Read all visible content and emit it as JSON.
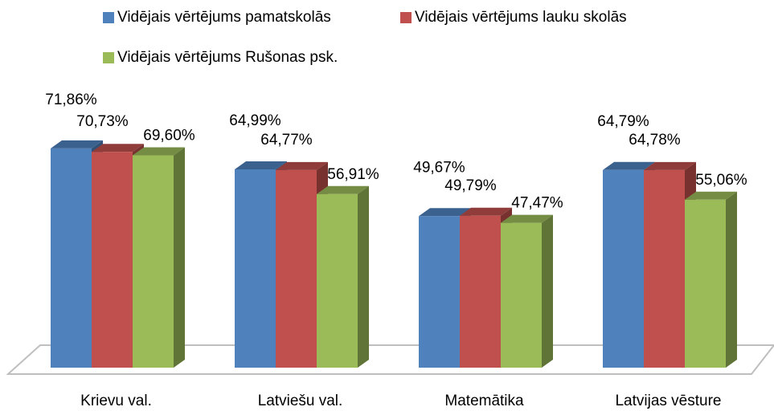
{
  "chart_data": {
    "type": "bar3d",
    "categories": [
      "Krievu val.",
      "Latviešu val.",
      "Matemātika",
      "Latvijas vēsture"
    ],
    "series": [
      {
        "name": "Vidējais vērtējums pamatskolās",
        "color": "#4f81bd",
        "values": [
          71.86,
          64.99,
          49.67,
          64.79
        ],
        "value_labels": [
          "71,86%",
          "64,99%",
          "49,67%",
          "64,79%"
        ]
      },
      {
        "name": "Vidējais vērtējums lauku skolās",
        "color": "#c0504d",
        "values": [
          70.73,
          64.77,
          49.79,
          64.78
        ],
        "value_labels": [
          "70,73%",
          "64,77%",
          "49,79%",
          "64,78%"
        ]
      },
      {
        "name": "Vidējais vērtējums Rušonas psk.",
        "color": "#9bbb59",
        "values": [
          69.6,
          56.91,
          47.47,
          55.06
        ],
        "value_labels": [
          "69,60%",
          "56,91%",
          "47,47%",
          "55,06%"
        ]
      }
    ]
  }
}
